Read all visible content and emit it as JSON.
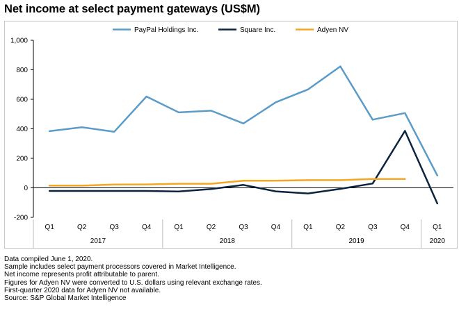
{
  "title": "Net income at select payment gateways (US$M)",
  "chart_data": {
    "type": "line",
    "x": [
      "Q1",
      "Q2",
      "Q3",
      "Q4",
      "Q1",
      "Q2",
      "Q3",
      "Q4",
      "Q1",
      "Q2",
      "Q3",
      "Q4",
      "Q1"
    ],
    "year_groups": [
      {
        "label": "2017",
        "count": 4
      },
      {
        "label": "2018",
        "count": 4
      },
      {
        "label": "2019",
        "count": 4
      },
      {
        "label": "2020",
        "count": 1
      }
    ],
    "ylim": [
      -200,
      1000
    ],
    "yticks": [
      -200,
      0,
      200,
      400,
      600,
      800,
      1000
    ],
    "ytick_labels": [
      "-200",
      "0",
      "200",
      "400",
      "600",
      "800",
      "1,000"
    ],
    "grid": false,
    "legend_position": "top",
    "series": [
      {
        "name": "PayPal Holdings Inc.",
        "color": "#5b9bc8",
        "values": [
          384,
          411,
          380,
          619,
          511,
          523,
          436,
          580,
          667,
          823,
          462,
          507,
          84
        ]
      },
      {
        "name": "Square Inc.",
        "color": "#0c2340",
        "values": [
          -21,
          -21,
          -21,
          -21,
          -25,
          -8,
          20,
          -24,
          -38,
          -7,
          29,
          386,
          -106
        ]
      },
      {
        "name": "Adyen NV",
        "color": "#f5a623",
        "values": [
          15,
          15,
          22,
          23,
          28,
          28,
          48,
          48,
          52,
          52,
          60,
          60,
          null
        ]
      }
    ]
  },
  "notes": [
    "Data compiled June 1, 2020.",
    "Sample includes select payment processors covered in Market Intelligence.",
    "Net income represents profit attributable to parent.",
    "Figures for Adyen NV were converted to U.S. dollars using relevant exchange rates.",
    "First-quarter 2020 data for Adyen NV not available.",
    "Source: S&P Global Market Intelligence"
  ]
}
